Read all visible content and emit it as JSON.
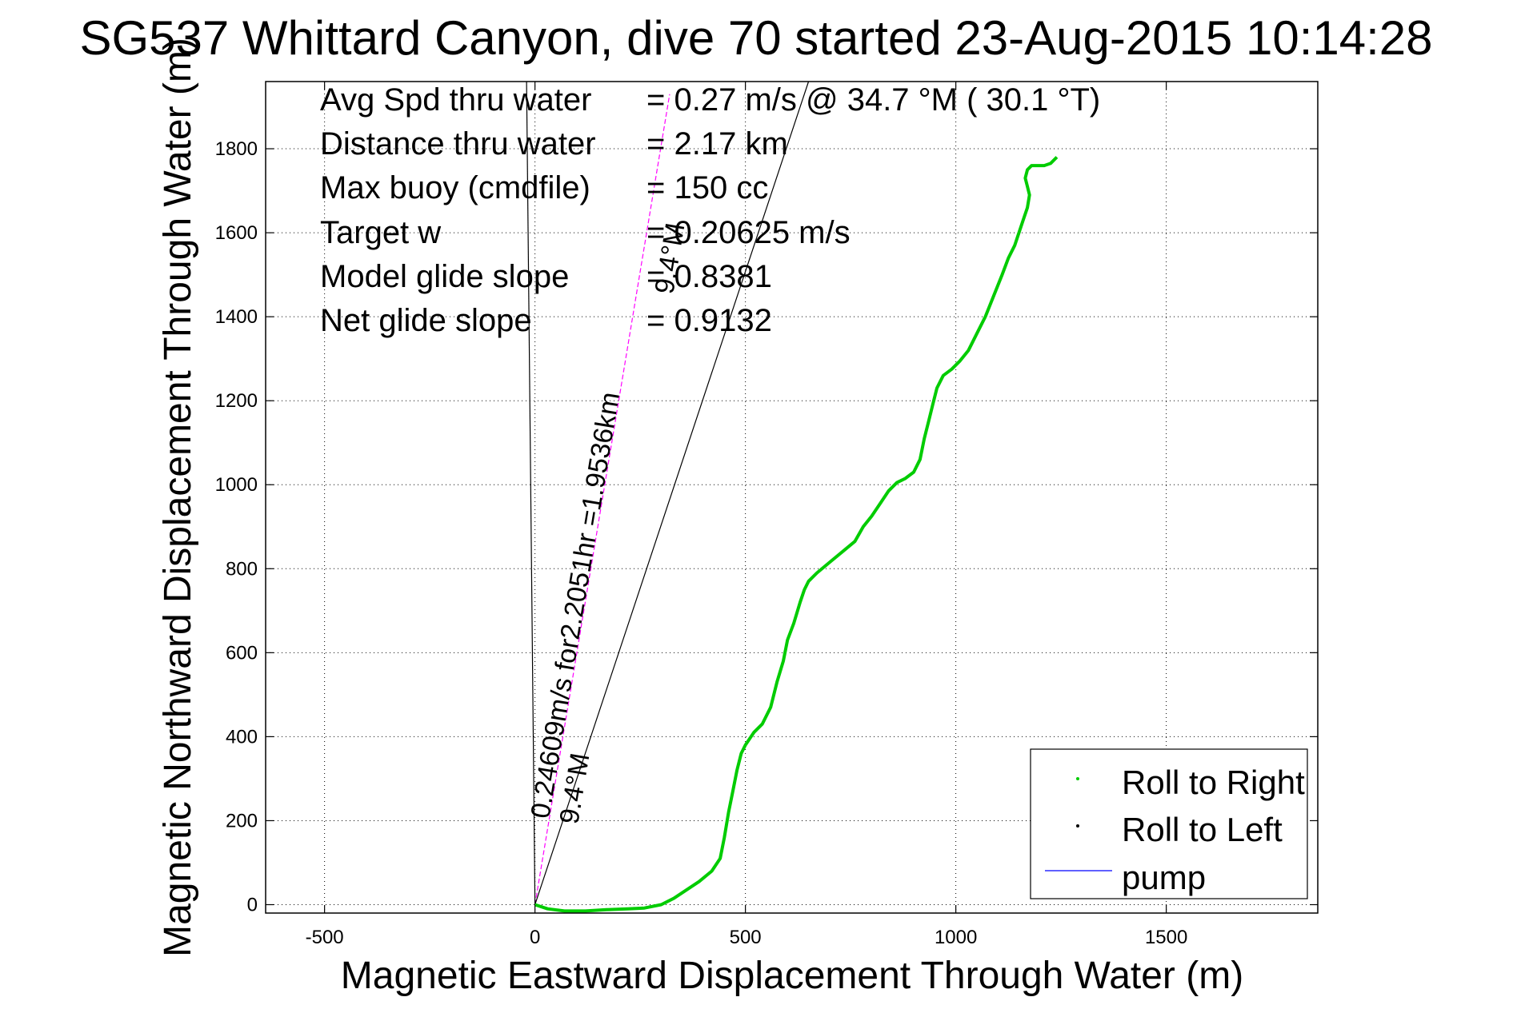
{
  "chart_data": {
    "type": "line",
    "title": "SG537 Whittard Canyon, dive 70 started 23-Aug-2015 10:14:28",
    "xlabel": "Magnetic Eastward Displacement Through Water (m)",
    "ylabel": "Magnetic Northward Displacement Through Water (m)",
    "xlim": [
      -640,
      1860
    ],
    "ylim": [
      -20,
      1960
    ],
    "xticks": [
      -500,
      0,
      500,
      1000,
      1500
    ],
    "yticks": [
      0,
      200,
      400,
      600,
      800,
      1000,
      1200,
      1400,
      1600,
      1800
    ],
    "grid": true,
    "info_lines": [
      {
        "label": "Avg Spd thru water",
        "value": "= 0.27 m/s @  34.7 °M ( 30.1 °T)"
      },
      {
        "label": "Distance thru water",
        "value": "=  2.17 km"
      },
      {
        "label": "Max buoy (cmdfile)",
        "value": "= 150 cc"
      },
      {
        "label": "Target w",
        "value": "= 0.20625 m/s"
      },
      {
        "label": "Model glide slope",
        "value": "= 0.8381"
      },
      {
        "label": "Net glide slope",
        "value": "= 0.9132"
      }
    ],
    "rotated_labels": {
      "speed_label": "0.24609m/s for2.2051hr =1.9536km",
      "heading_label_lower": "9.4°M",
      "heading_label_upper": "9.4°M"
    },
    "reference_lines": [
      {
        "name": "heading-9.4",
        "color": "#ff00ff",
        "dashed": true,
        "from": [
          0,
          0
        ],
        "to": [
          320,
          1930
        ]
      },
      {
        "name": "left-bound",
        "color": "#000000",
        "dashed": false,
        "from": [
          0,
          0
        ],
        "to": [
          -20,
          1960
        ]
      },
      {
        "name": "right-bound",
        "color": "#000000",
        "dashed": false,
        "from": [
          0,
          0
        ],
        "to": [
          650,
          1960
        ]
      }
    ],
    "series": [
      {
        "name": "Roll to Right",
        "color": "#00cc00",
        "x": [
          0,
          30,
          70,
          120,
          170,
          220,
          260,
          300,
          330,
          360,
          390,
          420,
          440,
          450,
          460,
          470,
          480,
          490,
          500,
          510,
          520,
          540,
          560,
          575,
          590,
          600,
          615,
          630,
          640,
          650,
          670,
          700,
          730,
          760,
          780,
          800,
          820,
          840,
          860,
          880,
          900,
          915,
          925,
          935,
          945,
          955,
          970,
          990,
          1010,
          1030,
          1050,
          1070,
          1090,
          1110,
          1125,
          1140,
          1150,
          1160,
          1170,
          1175,
          1170,
          1165,
          1170,
          1180,
          1195,
          1210,
          1225,
          1240
        ],
        "y": [
          0,
          -10,
          -15,
          -15,
          -12,
          -10,
          -8,
          0,
          15,
          35,
          55,
          80,
          110,
          160,
          220,
          270,
          320,
          360,
          380,
          395,
          410,
          430,
          470,
          530,
          580,
          630,
          670,
          720,
          750,
          770,
          790,
          815,
          840,
          865,
          900,
          925,
          955,
          985,
          1005,
          1015,
          1030,
          1060,
          1110,
          1150,
          1190,
          1230,
          1260,
          1275,
          1295,
          1320,
          1360,
          1400,
          1450,
          1500,
          1540,
          1570,
          1600,
          1630,
          1660,
          1690,
          1710,
          1730,
          1750,
          1760,
          1760,
          1760,
          1765,
          1780
        ]
      },
      {
        "name": "Roll to Left",
        "color": "#000000",
        "x": [],
        "y": []
      },
      {
        "name": "pump",
        "color": "#0000ff",
        "x": [],
        "y": []
      }
    ],
    "legend": {
      "placement": "bottom-right",
      "entries": [
        "Roll to Right",
        "Roll to Left",
        "pump"
      ]
    }
  }
}
